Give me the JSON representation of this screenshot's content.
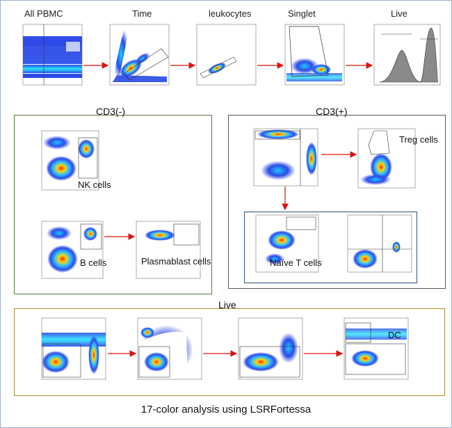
{
  "gating_row": {
    "labels": [
      "All PBMC",
      "Time",
      "leukocytes",
      "Singlet",
      "Live"
    ]
  },
  "cd3_neg": {
    "title": "CD3(-)",
    "labels": [
      "NK cells",
      "B cells",
      "Plasmablast cells"
    ]
  },
  "cd3_pos": {
    "title": "CD3(+)",
    "labels": [
      "Treg cells",
      "Naïve T cells"
    ]
  },
  "live_section": {
    "title": "Live",
    "labels": [
      "DC"
    ]
  },
  "caption": "17-color analysis using LSRFortessa",
  "colors": {
    "cd3_neg_border": "#5a7a3a",
    "cd3_pos_border": "#555555",
    "naive_border": "#2f4f7f",
    "live_border": "#b08a2e",
    "arrow": "#dd1111"
  },
  "plot_icons": [
    "flow-cytometry-dot-plot",
    "histogram"
  ]
}
